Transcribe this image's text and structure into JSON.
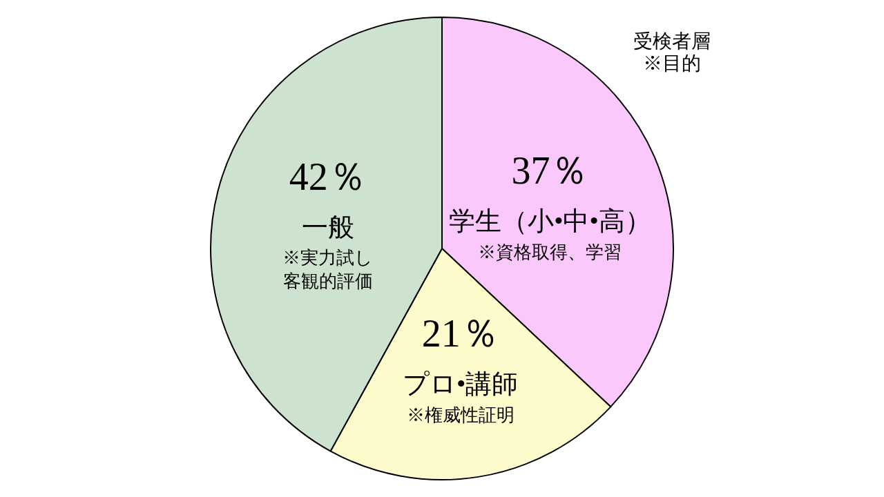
{
  "chart_data": {
    "type": "pie",
    "title": "受検者層",
    "subtitle": "※目的",
    "categories": [
      "学生（小•中•高）\n※資格取得、学習",
      "プロ•講師\n※権威性証明",
      "一般\n※実力試し客観的評価"
    ],
    "values": [
      37,
      21,
      42
    ],
    "value_labels": [
      "37％",
      "21％",
      "42％"
    ],
    "colors": [
      "#fbc8fb",
      "#fdfbcc",
      "#cde2cf"
    ]
  }
}
